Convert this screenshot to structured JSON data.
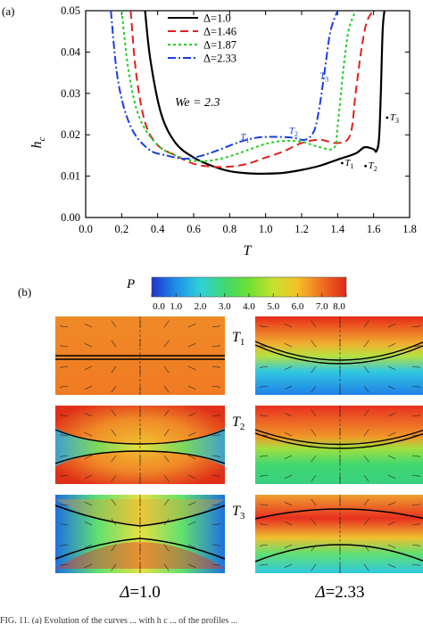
{
  "panel_a_label": "(a)",
  "panel_b_label": "(b)",
  "caption_fragment": "FIG. 11. (a) Evolution of the curves ... with h c ... of the profiles ...",
  "chart_data": [
    {
      "type": "line",
      "xlabel": "T",
      "ylabel": "h",
      "ylabel_sub": "c",
      "xlim": [
        0.0,
        1.8
      ],
      "ylim": [
        0.0,
        0.05
      ],
      "xticks": [
        "0.0",
        "0.2",
        "0.4",
        "0.6",
        "0.8",
        "1.0",
        "1.2",
        "1.4",
        "1.6",
        "1.8"
      ],
      "yticks": [
        "0.00",
        "0.01",
        "0.02",
        "0.03",
        "0.04",
        "0.05"
      ],
      "grid": false,
      "legend_position": "top-center",
      "annotation_we": "We = 2.3",
      "series": [
        {
          "name": "Δ=1.0",
          "color": "#000000",
          "dash": "solid",
          "x": [
            0.33,
            0.36,
            0.42,
            0.5,
            0.6,
            0.7,
            0.8,
            0.9,
            1.0,
            1.1,
            1.2,
            1.3,
            1.4,
            1.5,
            1.55,
            1.6,
            1.615,
            1.63,
            1.64,
            1.65,
            1.66
          ],
          "y": [
            0.05,
            0.038,
            0.025,
            0.018,
            0.0145,
            0.0125,
            0.0112,
            0.0107,
            0.0106,
            0.0108,
            0.0115,
            0.0125,
            0.014,
            0.0155,
            0.017,
            0.0165,
            0.016,
            0.019,
            0.03,
            0.045,
            0.05
          ]
        },
        {
          "name": "Δ=1.46",
          "color": "#e02020",
          "dash": "dash",
          "x": [
            0.25,
            0.28,
            0.33,
            0.4,
            0.5,
            0.6,
            0.7,
            0.8,
            0.9,
            1.0,
            1.1,
            1.2,
            1.3,
            1.4,
            1.47,
            1.5,
            1.53,
            1.56,
            1.6,
            1.63
          ],
          "y": [
            0.05,
            0.035,
            0.023,
            0.0175,
            0.015,
            0.013,
            0.0123,
            0.0123,
            0.013,
            0.0145,
            0.016,
            0.018,
            0.0188,
            0.018,
            0.02,
            0.03,
            0.04,
            0.047,
            0.05,
            0.05
          ]
        },
        {
          "name": "Δ=1.87",
          "color": "#22cc22",
          "dash": "dot",
          "x": [
            0.2,
            0.24,
            0.3,
            0.4,
            0.5,
            0.6,
            0.7,
            0.8,
            0.9,
            1.0,
            1.1,
            1.2,
            1.3,
            1.38,
            1.4,
            1.43,
            1.46,
            1.5
          ],
          "y": [
            0.05,
            0.035,
            0.024,
            0.0175,
            0.015,
            0.0137,
            0.0138,
            0.0148,
            0.0163,
            0.0178,
            0.0185,
            0.0183,
            0.017,
            0.0168,
            0.022,
            0.035,
            0.045,
            0.05
          ]
        },
        {
          "name": "Δ=2.33",
          "color": "#1a3ee0",
          "dash": "dashdot",
          "x": [
            0.14,
            0.18,
            0.25,
            0.35,
            0.45,
            0.55,
            0.65,
            0.75,
            0.85,
            0.95,
            1.05,
            1.15,
            1.22,
            1.27,
            1.3,
            1.33,
            1.36,
            1.4
          ],
          "y": [
            0.05,
            0.033,
            0.022,
            0.0165,
            0.015,
            0.0142,
            0.015,
            0.0165,
            0.0182,
            0.0193,
            0.0195,
            0.0193,
            0.0188,
            0.021,
            0.027,
            0.036,
            0.045,
            0.05
          ]
        }
      ],
      "point_labels": [
        {
          "text": "T",
          "sub": "1",
          "color": "#1a3ee0",
          "x": 0.86,
          "y": 0.0188
        },
        {
          "text": "T",
          "sub": "2",
          "color": "#1a3ee0",
          "x": 1.13,
          "y": 0.0203
        },
        {
          "text": "T",
          "sub": "3",
          "color": "#1a3ee0",
          "x": 1.3,
          "y": 0.0335
        },
        {
          "text": "T",
          "sub": "1",
          "color": "#000000",
          "x": 1.44,
          "y": 0.0125
        },
        {
          "text": "T",
          "sub": "2",
          "color": "#000000",
          "x": 1.57,
          "y": 0.0118
        },
        {
          "text": "T",
          "sub": "3",
          "color": "#000000",
          "x": 1.69,
          "y": 0.0235
        }
      ]
    },
    {
      "type": "heatmap",
      "colorbar_label": "P",
      "colorbar_ticks": [
        "0.0",
        "1.0",
        "2.0",
        "3.0",
        "4.0",
        "5.0",
        "6.0",
        "7.0",
        "8.0"
      ],
      "colorbar_range": [
        0.0,
        8.0
      ],
      "colorbar_colors": [
        "#2233cc",
        "#1f8fe8",
        "#2fd0d8",
        "#3fd870",
        "#6ee030",
        "#c8e030",
        "#f5c028",
        "#f07020",
        "#e02818"
      ],
      "row_labels": [
        {
          "text": "T",
          "sub": "1"
        },
        {
          "text": "T",
          "sub": "2"
        },
        {
          "text": "T",
          "sub": "3"
        }
      ],
      "column_labels": [
        {
          "prefix": "Δ",
          "value": "=1.0"
        },
        {
          "prefix": "Δ",
          "value": "=2.33"
        }
      ]
    }
  ]
}
